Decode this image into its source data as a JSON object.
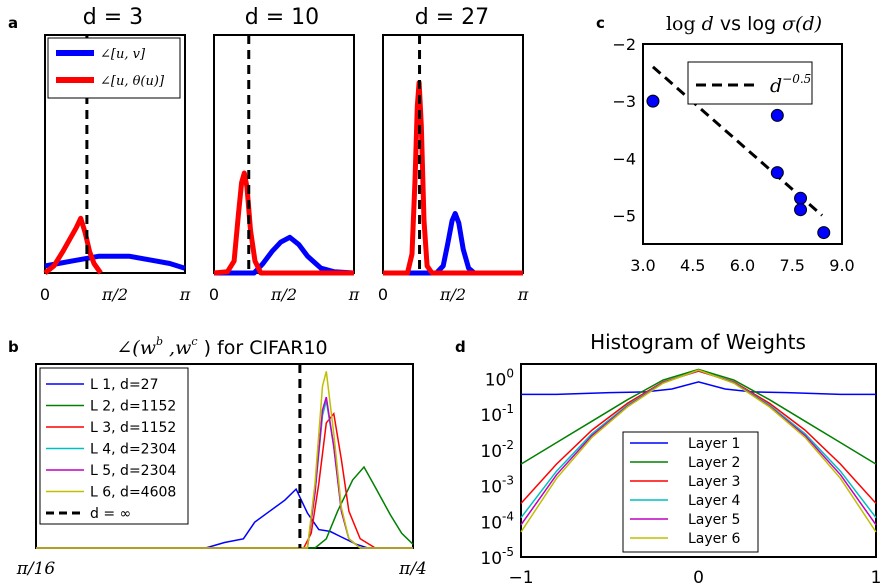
{
  "chart_data": [
    {
      "panel": "a",
      "type": "line",
      "title": "d = 3",
      "x_tick_labels": [
        "0",
        "π/2",
        "π"
      ],
      "vline": 0.94,
      "series": [
        {
          "name": "∠[u, v]",
          "color": "#0000ff",
          "x": [
            0,
            0.3,
            0.6,
            0.9,
            1.2,
            1.57,
            1.9,
            2.2,
            2.5,
            2.8,
            3.14
          ],
          "y": [
            0.03,
            0.04,
            0.05,
            0.06,
            0.07,
            0.07,
            0.07,
            0.06,
            0.05,
            0.04,
            0.02
          ]
        },
        {
          "name": "∠[u, θ(u)]",
          "color": "#ff0000",
          "x": [
            0,
            0.2,
            0.4,
            0.55,
            0.7,
            0.8,
            0.9,
            1.0,
            1.1,
            1.25
          ],
          "y": [
            0,
            0.03,
            0.09,
            0.14,
            0.19,
            0.23,
            0.17,
            0.09,
            0.04,
            0
          ]
        }
      ]
    },
    {
      "panel": "a",
      "type": "line",
      "title": "d = 10",
      "x_tick_labels": [
        "0",
        "π/2",
        "π"
      ],
      "vline": 0.78,
      "series": [
        {
          "name": "∠[u, v]",
          "color": "#0000ff",
          "x": [
            0,
            0.9,
            1.1,
            1.3,
            1.5,
            1.7,
            1.9,
            2.1,
            2.4,
            2.7,
            3.14
          ],
          "y": [
            0,
            0,
            0.04,
            0.09,
            0.13,
            0.15,
            0.12,
            0.07,
            0.02,
            0.005,
            0
          ]
        },
        {
          "name": "∠[u, θ(u)]",
          "color": "#ff0000",
          "x": [
            0,
            0.3,
            0.45,
            0.55,
            0.62,
            0.68,
            0.74,
            0.82,
            0.92,
            1.05,
            3.14
          ],
          "y": [
            0,
            0.005,
            0.05,
            0.25,
            0.38,
            0.42,
            0.36,
            0.18,
            0.05,
            0,
            0
          ]
        }
      ]
    },
    {
      "panel": "a",
      "type": "line",
      "title": "d = 27",
      "x_tick_labels": [
        "0",
        "π/2",
        "π"
      ],
      "vline": 0.82,
      "series": [
        {
          "name": "∠[u, v]",
          "color": "#0000ff",
          "x": [
            0,
            1.2,
            1.35,
            1.45,
            1.55,
            1.62,
            1.7,
            1.8,
            1.92,
            2.05,
            3.14
          ],
          "y": [
            0,
            0,
            0.03,
            0.12,
            0.22,
            0.25,
            0.21,
            0.1,
            0.02,
            0,
            0
          ]
        },
        {
          "name": "∠[u, θ(u)]",
          "color": "#ff0000",
          "x": [
            0,
            0.55,
            0.65,
            0.72,
            0.77,
            0.81,
            0.86,
            0.92,
            0.99,
            1.1,
            3.14
          ],
          "y": [
            0,
            0,
            0.08,
            0.4,
            0.7,
            0.8,
            0.62,
            0.22,
            0.03,
            0,
            0
          ]
        }
      ]
    },
    {
      "panel": "b",
      "type": "line",
      "title": "∠(w^b, w^c) for CIFAR10",
      "x_tick_labels": [
        "π/16",
        "π/4"
      ],
      "vline": 0.7,
      "legend": [
        "L 1, d=27",
        "L 2, d=1152",
        "L 3, d=1152",
        "L 4, d=2304",
        "L 5, d=2304",
        "L 6, d=4608",
        "d = ∞"
      ],
      "series": [
        {
          "name": "L 1, d=27",
          "color": "#0000ff",
          "x": [
            0,
            0.45,
            0.5,
            0.55,
            0.58,
            0.62,
            0.66,
            0.69,
            0.72,
            0.75,
            0.78,
            0.81,
            0.85,
            0.88,
            1
          ],
          "y": [
            0,
            0,
            0.03,
            0.05,
            0.14,
            0.2,
            0.26,
            0.32,
            0.19,
            0.1,
            0.09,
            0.06,
            0.02,
            0,
            0
          ]
        },
        {
          "name": "L 2, d=1152",
          "color": "#008000",
          "x": [
            0,
            0.74,
            0.77,
            0.8,
            0.84,
            0.87,
            0.9,
            0.94,
            0.97,
            1
          ],
          "y": [
            0,
            0,
            0.05,
            0.2,
            0.37,
            0.44,
            0.33,
            0.18,
            0.08,
            0.02
          ]
        },
        {
          "name": "L 3, d=1152",
          "color": "#ff0000",
          "x": [
            0,
            0.71,
            0.73,
            0.75,
            0.77,
            0.79,
            0.81,
            0.83,
            0.86,
            0.9,
            1
          ],
          "y": [
            0,
            0,
            0.08,
            0.35,
            0.68,
            0.73,
            0.48,
            0.2,
            0.05,
            0,
            0
          ]
        },
        {
          "name": "L 4, d=2304",
          "color": "#00bfbf",
          "x": [
            0,
            0.72,
            0.74,
            0.76,
            0.77,
            0.79,
            0.81,
            0.83,
            0.86,
            1
          ],
          "y": [
            0,
            0,
            0.3,
            0.72,
            0.8,
            0.55,
            0.2,
            0.05,
            0,
            0
          ]
        },
        {
          "name": "L 5, d=2304",
          "color": "#bf00bf",
          "x": [
            0,
            0.72,
            0.74,
            0.76,
            0.77,
            0.79,
            0.81,
            0.83,
            0.86,
            1
          ],
          "y": [
            0,
            0,
            0.3,
            0.75,
            0.82,
            0.55,
            0.2,
            0.05,
            0,
            0
          ]
        },
        {
          "name": "L 6, d=4608",
          "color": "#bfbf00",
          "x": [
            0,
            0.72,
            0.74,
            0.76,
            0.77,
            0.79,
            0.81,
            0.83,
            0.86,
            1
          ],
          "y": [
            0,
            0,
            0.35,
            0.88,
            0.96,
            0.62,
            0.22,
            0.05,
            0,
            0
          ]
        }
      ]
    },
    {
      "panel": "c",
      "type": "scatter",
      "title": "log d vs log σ(d)",
      "x_ticks": [
        3.0,
        4.5,
        6.0,
        7.5,
        9.0
      ],
      "y_ticks": [
        -2,
        -3,
        -4,
        -5
      ],
      "xlim": [
        3.0,
        9.0
      ],
      "ylim": [
        -5.5,
        -2.0
      ],
      "legend": [
        "d^-0.5"
      ],
      "points": [
        {
          "x": 3.3,
          "y": -3.0
        },
        {
          "x": 7.05,
          "y": -3.25
        },
        {
          "x": 7.05,
          "y": -4.25
        },
        {
          "x": 7.75,
          "y": -4.7
        },
        {
          "x": 7.75,
          "y": -4.9
        },
        {
          "x": 8.45,
          "y": -5.3
        }
      ],
      "fit_line": {
        "x": [
          3.3,
          8.4
        ],
        "y": [
          -2.4,
          -5.0
        ]
      }
    },
    {
      "panel": "d",
      "type": "line",
      "title": "Histogram of Weights",
      "x_ticks": [
        "−1",
        "0",
        "1"
      ],
      "y_ticks": [
        "10^0",
        "10^-1",
        "10^-2",
        "10^-3",
        "10^-4",
        "10^-5"
      ],
      "ylim_log10": [
        -5,
        0.4
      ],
      "xlim": [
        -1,
        1
      ],
      "legend_title": "",
      "series": [
        {
          "name": "Layer 1",
          "color": "#0000ff",
          "x": [
            -1,
            -0.8,
            -0.5,
            -0.3,
            -0.15,
            0,
            0.15,
            0.3,
            0.5,
            0.8,
            1
          ],
          "y": [
            -0.45,
            -0.45,
            -0.4,
            -0.38,
            -0.3,
            -0.1,
            -0.3,
            -0.38,
            -0.4,
            -0.45,
            -0.45
          ]
        },
        {
          "name": "Layer 2",
          "color": "#008000",
          "x": [
            -1,
            -0.8,
            -0.6,
            -0.4,
            -0.2,
            0,
            0.2,
            0.4,
            0.6,
            0.8,
            1
          ],
          "y": [
            -2.4,
            -1.8,
            -1.2,
            -0.6,
            -0.05,
            0.25,
            -0.05,
            -0.6,
            -1.2,
            -1.8,
            -2.4
          ]
        },
        {
          "name": "Layer 3",
          "color": "#ff0000",
          "x": [
            -1,
            -0.8,
            -0.6,
            -0.4,
            -0.2,
            0,
            0.2,
            0.4,
            0.6,
            0.8,
            1
          ],
          "y": [
            -3.5,
            -2.4,
            -1.45,
            -0.7,
            -0.1,
            0.2,
            -0.1,
            -0.7,
            -1.45,
            -2.4,
            -3.5
          ]
        },
        {
          "name": "Layer 4",
          "color": "#00bfbf",
          "x": [
            -1,
            -0.8,
            -0.6,
            -0.4,
            -0.2,
            0,
            0.2,
            0.4,
            0.6,
            0.8,
            1
          ],
          "y": [
            -3.9,
            -2.6,
            -1.55,
            -0.75,
            -0.12,
            0.22,
            -0.12,
            -0.75,
            -1.55,
            -2.6,
            -3.9
          ]
        },
        {
          "name": "Layer 5",
          "color": "#bf00bf",
          "x": [
            -1,
            -0.8,
            -0.6,
            -0.4,
            -0.2,
            0,
            0.2,
            0.4,
            0.6,
            0.8,
            1
          ],
          "y": [
            -4.1,
            -2.7,
            -1.6,
            -0.78,
            -0.13,
            0.22,
            -0.13,
            -0.78,
            -1.6,
            -2.7,
            -4.1
          ]
        },
        {
          "name": "Layer 6",
          "color": "#bfbf00",
          "x": [
            -1,
            -0.8,
            -0.6,
            -0.4,
            -0.2,
            0,
            0.2,
            0.4,
            0.6,
            0.8,
            1
          ],
          "y": [
            -4.3,
            -2.8,
            -1.65,
            -0.8,
            -0.14,
            0.23,
            -0.14,
            -0.8,
            -1.65,
            -2.8,
            -4.3
          ]
        }
      ]
    }
  ],
  "labels": {
    "panel_a": "a",
    "panel_b": "b",
    "panel_c": "c",
    "panel_d": "d",
    "title_a1": "d = 3",
    "title_a2": "d = 10",
    "title_a3": "d = 27",
    "title_b": "∠(w",
    "title_b_sup1": "b",
    "title_b_mid": " ,w",
    "title_b_sup2": "c",
    "title_b_end": " ) for CIFAR10",
    "title_c_pre": "log ",
    "title_c_d": "d",
    "title_c_mid": " vs log ",
    "title_c_sigma": "σ(d)",
    "title_d": "Histogram of Weights",
    "legend_a_1": "∠[u, v]",
    "legend_a_2": "∠[u, θ(u)]",
    "legend_c_base": "d",
    "legend_c_exp": "−0.5",
    "b_xtick_left": "π/16",
    "b_xtick_right": "π/4",
    "a_xtick_0": "0",
    "a_xtick_mid": "π/2",
    "a_xtick_pi": "π"
  }
}
